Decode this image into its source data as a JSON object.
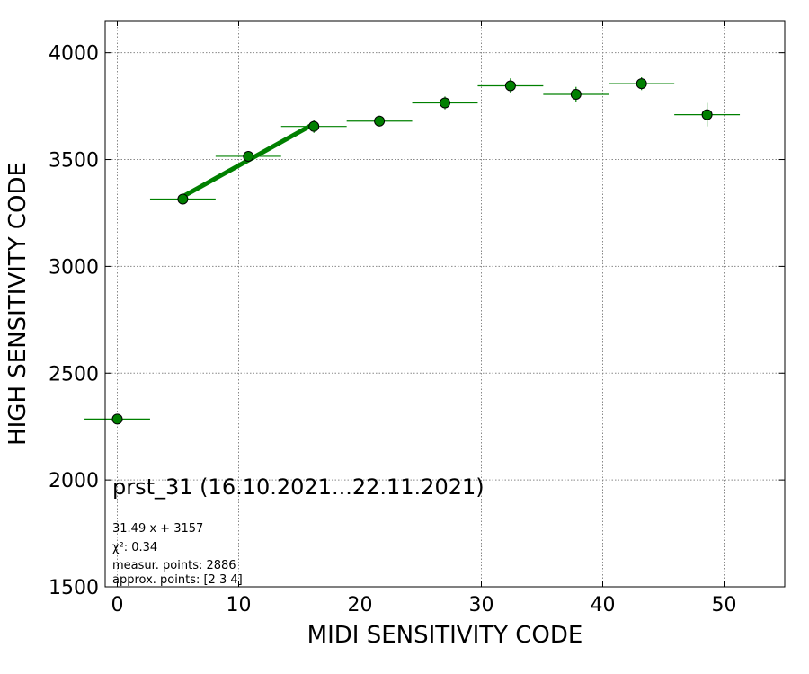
{
  "chart_data": {
    "type": "scatter",
    "title": "prst_31 (16.10.2021...22.11.2021)",
    "xlabel": "MIDI SENSITIVITY CODE",
    "ylabel": "HIGH SENSITIVITY CODE",
    "xlim": [
      -1,
      55
    ],
    "ylim": [
      1500,
      4150
    ],
    "xticks": [
      "0",
      "10",
      "20",
      "30",
      "40",
      "50"
    ],
    "yticks": [
      "1500",
      "2000",
      "2500",
      "3000",
      "3500",
      "4000"
    ],
    "grid": true,
    "series": [
      {
        "x": [
          0,
          5.4,
          10.8,
          16.2,
          21.6,
          27.0,
          32.4,
          37.8,
          43.2,
          48.6
        ],
        "y": [
          2285,
          3315,
          3515,
          3655,
          3680,
          3765,
          3845,
          3805,
          3855,
          3710
        ],
        "xerr": [
          2.7,
          2.7,
          2.7,
          2.7,
          2.7,
          2.7,
          2.7,
          2.7,
          2.7,
          2.7
        ],
        "yerr": [
          0,
          25,
          25,
          30,
          25,
          30,
          35,
          35,
          30,
          55
        ],
        "color": "#008000"
      }
    ],
    "fit_line": {
      "x": [
        5.4,
        16.2
      ],
      "y": [
        3327.0,
        3667.1
      ],
      "color": "#008000"
    },
    "annotations": [
      "31.49 x + 3157",
      "χ²: 0.34",
      "measur. points: 2886",
      "approx. points: [2 3 4]"
    ]
  }
}
